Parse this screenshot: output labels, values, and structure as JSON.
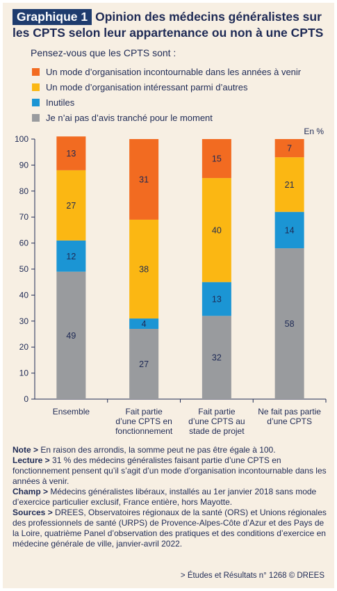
{
  "header": {
    "badge": "Graphique 1",
    "title_line1": "Opinion des médecins généralistes sur",
    "title_line2": "les CPTS selon leur appartenance ou non à une CPTS",
    "question": "Pensez-vous que les CPTS sont :"
  },
  "legend": [
    {
      "label": "Un mode d’organisation incontournable dans les années à venir",
      "color": "#f26b21"
    },
    {
      "label": "Un mode d’organisation intéressant parmi d’autres",
      "color": "#fbb713"
    },
    {
      "label": "Inutiles",
      "color": "#1b95d4"
    },
    {
      "label": "Je n’ai pas d’avis tranché pour le moment",
      "color": "#999b9e"
    }
  ],
  "chart_data": {
    "type": "bar",
    "stacked": true,
    "unit_label": "En %",
    "ylim": [
      0,
      100
    ],
    "yticks": [
      0,
      10,
      20,
      30,
      40,
      50,
      60,
      70,
      80,
      90,
      100
    ],
    "grid": false,
    "categories": [
      [
        "Ensemble"
      ],
      [
        "Fait partie",
        "d’une CPTS en",
        "fonctionnement"
      ],
      [
        "Fait partie",
        "d’une CPTS au",
        "stade de projet"
      ],
      [
        "Ne fait pas partie",
        "d’une CPTS"
      ]
    ],
    "series": [
      {
        "name": "Je n’ai pas d’avis tranché pour le moment",
        "color": "#999b9e",
        "values": [
          49,
          27,
          32,
          58
        ]
      },
      {
        "name": "Inutiles",
        "color": "#1b95d4",
        "values": [
          12,
          4,
          13,
          14
        ]
      },
      {
        "name": "Un mode d’organisation intéressant parmi d’autres",
        "color": "#fbb713",
        "values": [
          27,
          38,
          40,
          21
        ]
      },
      {
        "name": "Un mode d’organisation incontournable dans les années à venir",
        "color": "#f26b21",
        "values": [
          13,
          31,
          15,
          7
        ]
      }
    ]
  },
  "notes": {
    "note_label": "Note >",
    "note_text": " En raison des arrondis, la somme peut ne pas être égale à 100.",
    "lecture_label": "Lecture >",
    "lecture_text": " 31 % des médecins généralistes faisant partie d’une CPTS en fonctionnement pensent qu’il s’agit d’un mode d’organisation incontournable dans les années à venir.",
    "champ_label": "Champ >",
    "champ_text": " Médecins généralistes libéraux, installés au 1er janvier 2018 sans mode d’exercice particulier exclusif, France entière, hors Mayotte.",
    "sources_label": "Sources >",
    "sources_text": " DREES, Observatoires régionaux de la santé (ORS) et Unions régionales des professionnels de santé (URPS) de Provence-Alpes-Côte d’Azur et des Pays de la Loire, quatrième Panel d’observation des pratiques et des conditions d’exercice en médecine générale de ville, janvier-avril 2022."
  },
  "source_line": "> Études et Résultats n° 1268 © DREES"
}
